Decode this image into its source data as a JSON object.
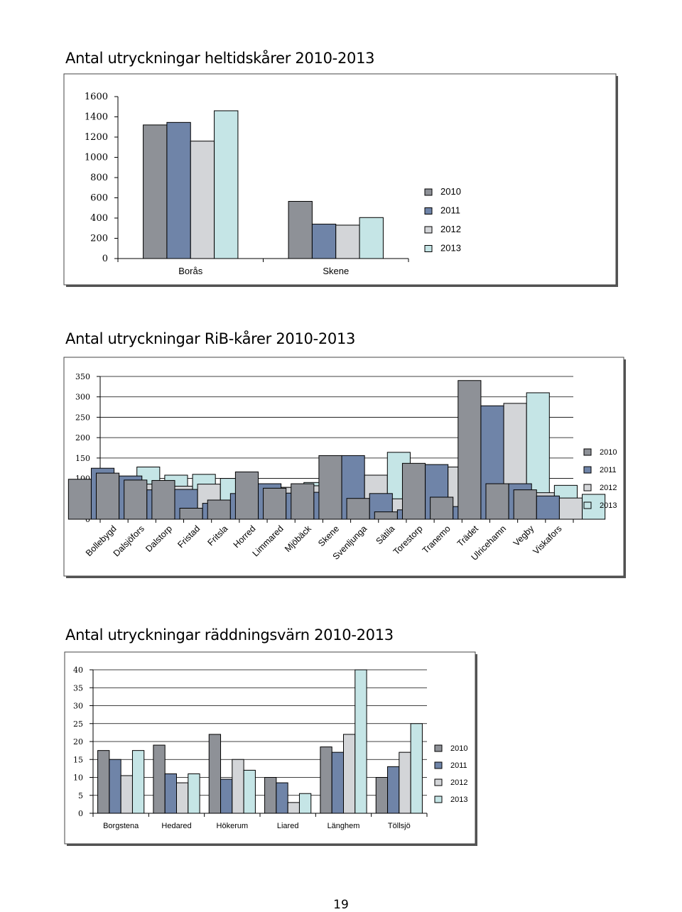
{
  "page_number": "19",
  "colors": {
    "2010": "#8e9197",
    "2011": "#6f84a8",
    "2012": "#d3d5d8",
    "2013": "#c5e5e6"
  },
  "chart_data": [
    {
      "type": "bar",
      "title": "Antal utryckningar heltidskårer 2010-2013",
      "xlabel": "",
      "ylabel": "",
      "ylim": [
        0,
        1600
      ],
      "yticks": [
        "0",
        "200",
        "400",
        "600",
        "800",
        "1000",
        "1200",
        "1400",
        "1600"
      ],
      "categories": [
        "Borås",
        "Skene"
      ],
      "series": [
        {
          "name": "2010",
          "values": [
            1320,
            565
          ]
        },
        {
          "name": "2011",
          "values": [
            1345,
            340
          ]
        },
        {
          "name": "2012",
          "values": [
            1160,
            330
          ]
        },
        {
          "name": "2013",
          "values": [
            1460,
            405
          ]
        }
      ],
      "legend": "right",
      "grid": false
    },
    {
      "type": "bar",
      "title": "Antal utryckningar RiB-kårer 2010-2013",
      "xlabel": "",
      "ylabel": "",
      "ylim": [
        0,
        350
      ],
      "yticks": [
        "0",
        "50",
        "100",
        "150",
        "200",
        "250",
        "300",
        "350"
      ],
      "categories": [
        "Bollebygd",
        "Dalsjöfors",
        "Dalstorp",
        "Fristad",
        "Fritsla",
        "Horred",
        "Limmared",
        "Mjöbäck",
        "Skene",
        "Svenljunga",
        "Sätila",
        "Torestorp",
        "Tranemo",
        "Trädet",
        "Ulricehamn",
        "Vegby",
        "Viskafors"
      ],
      "series": [
        {
          "name": "2010",
          "values": [
            98,
            113,
            96,
            95,
            27,
            47,
            116,
            76,
            87,
            156,
            51,
            18,
            137,
            54,
            340,
            87,
            72
          ]
        },
        {
          "name": "2011",
          "values": [
            125,
            106,
            72,
            73,
            39,
            63,
            87,
            64,
            66,
            156,
            63,
            23,
            134,
            31,
            278,
            87,
            57
          ]
        },
        {
          "name": "2012",
          "values": [
            102,
            86,
            81,
            86,
            28,
            64,
            78,
            82,
            53,
            108,
            50,
            28,
            128,
            33,
            284,
            65,
            52
          ]
        },
        {
          "name": "2013",
          "values": [
            128,
            108,
            110,
            100,
            39,
            78,
            90,
            76,
            72,
            164,
            61,
            46,
            143,
            51,
            310,
            83,
            61
          ]
        }
      ],
      "legend": "right",
      "grid": true
    },
    {
      "type": "bar",
      "title": "Antal utryckningar räddningsvärn 2010-2013",
      "xlabel": "",
      "ylabel": "",
      "ylim": [
        0,
        40
      ],
      "yticks": [
        "0",
        "5",
        "10",
        "15",
        "20",
        "25",
        "30",
        "35",
        "40"
      ],
      "categories": [
        "Borgstena",
        "Hedared",
        "Hökerum",
        "Liared",
        "Länghem",
        "Töllsjö"
      ],
      "series": [
        {
          "name": "2010",
          "values": [
            17.5,
            19,
            22,
            10,
            18.5,
            10
          ]
        },
        {
          "name": "2011",
          "values": [
            15,
            11,
            9.5,
            8.5,
            17,
            13
          ]
        },
        {
          "name": "2012",
          "values": [
            10.5,
            8.5,
            15,
            3,
            22,
            17
          ]
        },
        {
          "name": "2013",
          "values": [
            17.5,
            11,
            12,
            5.5,
            40,
            25
          ]
        }
      ],
      "legend": "right",
      "grid": true
    }
  ]
}
